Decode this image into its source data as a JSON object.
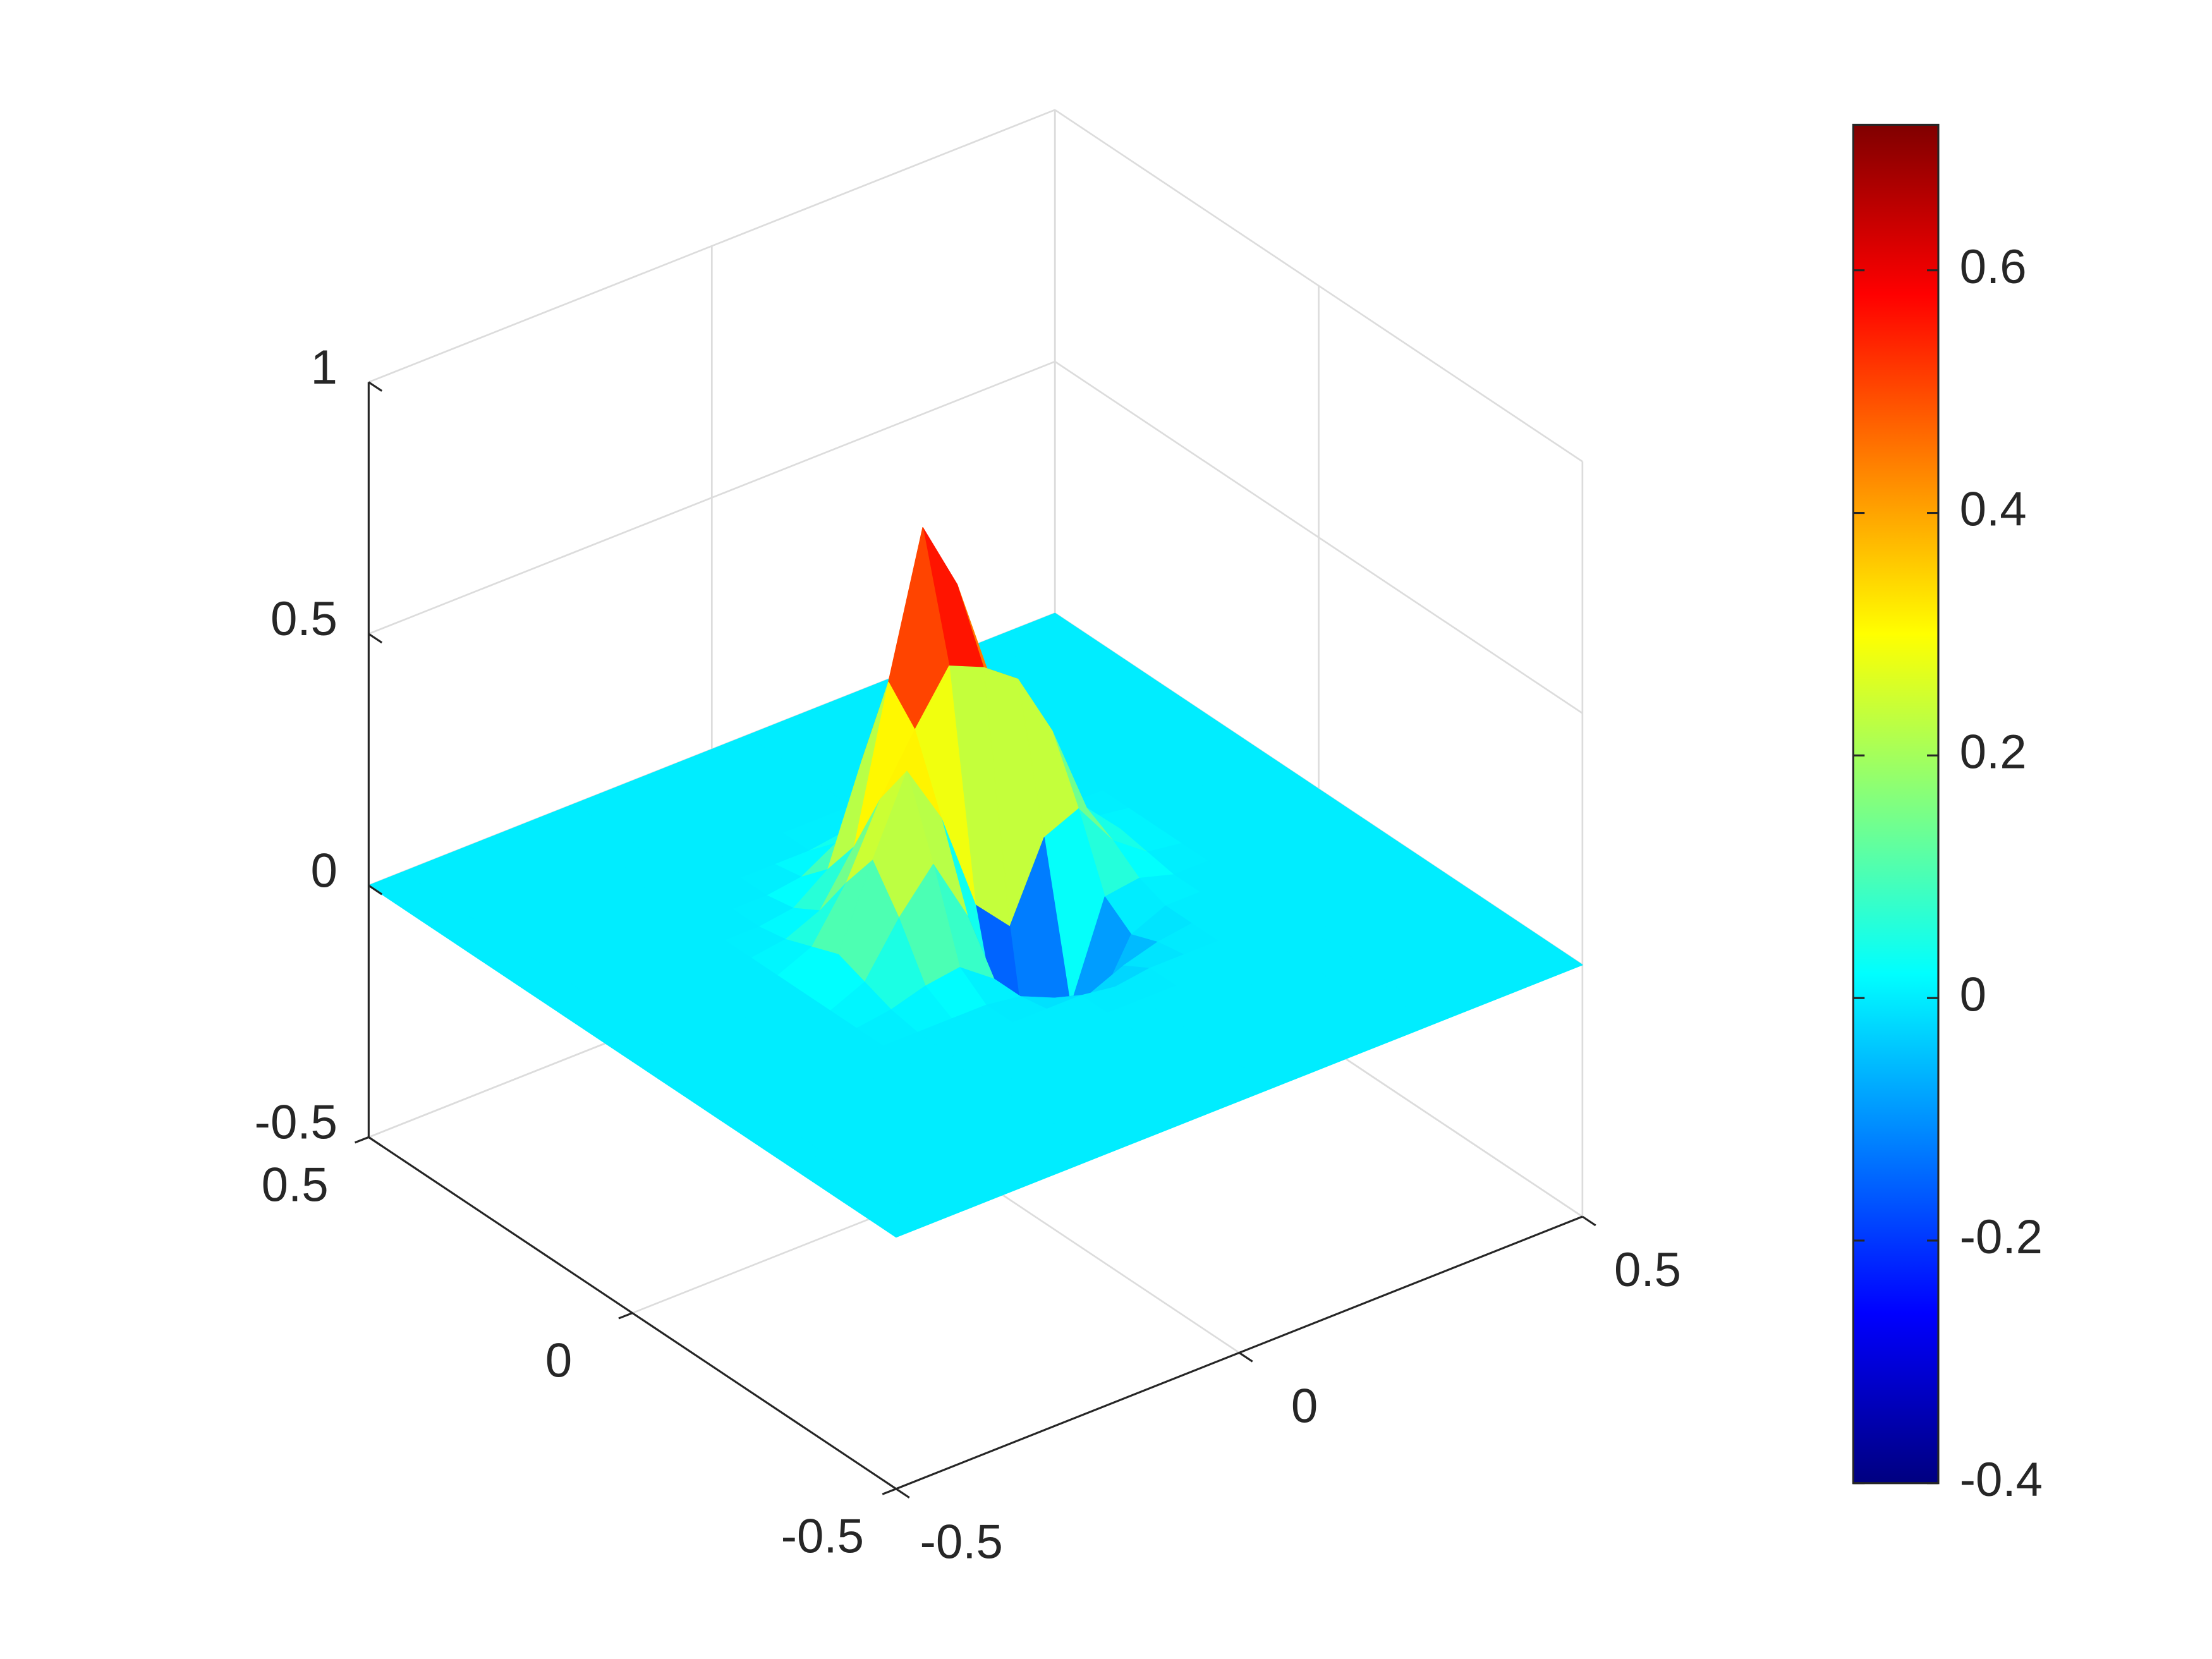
{
  "chart_data": {
    "type": "surface",
    "x": [
      -0.5,
      -0.45,
      -0.4,
      -0.35,
      -0.3,
      -0.25,
      -0.2,
      -0.15,
      -0.1,
      -0.05,
      0,
      0.05,
      0.1,
      0.15,
      0.2,
      0.25,
      0.3,
      0.35,
      0.4,
      0.45,
      0.5
    ],
    "y": [
      -0.5,
      -0.45,
      -0.4,
      -0.35,
      -0.3,
      -0.25,
      -0.2,
      -0.15,
      -0.1,
      -0.05,
      0,
      0.05,
      0.1,
      0.15,
      0.2,
      0.25,
      0.3,
      0.35,
      0.4,
      0.45,
      0.5
    ],
    "z": [
      [
        0,
        0,
        0,
        0,
        0,
        0,
        0,
        0,
        0,
        0,
        0,
        0,
        0,
        0,
        0,
        0,
        0,
        0,
        0,
        0,
        0
      ],
      [
        0,
        0,
        0,
        0,
        0,
        0,
        0,
        0,
        0,
        0,
        0,
        0,
        0,
        0,
        0,
        0,
        0,
        0,
        0,
        0,
        0
      ],
      [
        0,
        0,
        0,
        0,
        0,
        0,
        0,
        0,
        0,
        0,
        0,
        0,
        0,
        0,
        0,
        0,
        0,
        0,
        0,
        0,
        0
      ],
      [
        0,
        0,
        0,
        0,
        0,
        0,
        0,
        0,
        0,
        0,
        0,
        0,
        0,
        0,
        0,
        0,
        0,
        0,
        0,
        0,
        0
      ],
      [
        0,
        0,
        0,
        0,
        0,
        0,
        0,
        0,
        0,
        0,
        0,
        0,
        0,
        0,
        0,
        0,
        0,
        0,
        0,
        0,
        0
      ],
      [
        0,
        0,
        0,
        0,
        0,
        0,
        0,
        0,
        0,
        0,
        0,
        0,
        0,
        0,
        0,
        0,
        0,
        0,
        0,
        0,
        0
      ],
      [
        0,
        0,
        0,
        0,
        0,
        0,
        0,
        0,
        0,
        0,
        0,
        -0.01,
        0,
        0,
        0,
        0,
        0,
        0,
        0,
        0,
        0
      ],
      [
        0,
        0,
        0,
        0,
        0,
        0,
        0,
        0,
        0,
        -0.01,
        -0.04,
        -0.06,
        -0.03,
        -0.01,
        0,
        0,
        0,
        0,
        0,
        0,
        0
      ],
      [
        0,
        0,
        0,
        0,
        0,
        0,
        0.01,
        0.03,
        0.04,
        -0.01,
        -0.16,
        -0.26,
        -0.15,
        -0.03,
        0,
        0,
        0,
        0,
        0,
        0,
        0
      ],
      [
        0,
        0,
        0,
        0,
        0,
        0,
        0.03,
        0.13,
        0.21,
        0.08,
        -0.21,
        -0.4,
        -0.18,
        0.01,
        0.02,
        0,
        0,
        0,
        0,
        0,
        0
      ],
      [
        0,
        0,
        0,
        0,
        0,
        0,
        0.05,
        0.21,
        0.36,
        0.24,
        0.04,
        -0.03,
        0.12,
        0.15,
        0.06,
        0.01,
        0,
        0,
        0,
        0,
        0
      ],
      [
        0,
        0,
        0,
        0,
        0,
        0,
        0.03,
        0.13,
        0.27,
        0.38,
        0.48,
        0.45,
        0.4,
        0.27,
        0.09,
        0.02,
        0,
        0,
        0,
        0,
        0
      ],
      [
        0,
        0,
        0,
        0,
        0,
        0,
        0.01,
        0.04,
        0.14,
        0.44,
        0.72,
        0.58,
        0.36,
        0.2,
        0.07,
        0.01,
        0,
        0,
        0,
        0,
        0
      ],
      [
        0,
        0,
        0,
        0,
        0,
        0,
        0,
        0.01,
        0.06,
        0.25,
        0.42,
        0.31,
        0.15,
        0.07,
        0.02,
        0,
        0,
        0,
        0,
        0,
        0
      ],
      [
        0,
        0,
        0,
        0,
        0,
        0,
        0,
        0,
        0.01,
        0.05,
        0.09,
        0.07,
        0.03,
        0.01,
        0,
        0,
        0,
        0,
        0,
        0,
        0
      ],
      [
        0,
        0,
        0,
        0,
        0,
        0,
        0,
        0,
        0,
        0,
        0.01,
        0,
        0,
        0,
        0,
        0,
        0,
        0,
        0,
        0,
        0
      ],
      [
        0,
        0,
        0,
        0,
        0,
        0,
        0,
        0,
        0,
        0,
        0,
        0,
        0,
        0,
        0,
        0,
        0,
        0,
        0,
        0,
        0
      ],
      [
        0,
        0,
        0,
        0,
        0,
        0,
        0,
        0,
        0,
        0,
        0,
        0,
        0,
        0,
        0,
        0,
        0,
        0,
        0,
        0,
        0
      ],
      [
        0,
        0,
        0,
        0,
        0,
        0,
        0,
        0,
        0,
        0,
        0,
        0,
        0,
        0,
        0,
        0,
        0,
        0,
        0,
        0,
        0
      ],
      [
        0,
        0,
        0,
        0,
        0,
        0,
        0,
        0,
        0,
        0,
        0,
        0,
        0,
        0,
        0,
        0,
        0,
        0,
        0,
        0,
        0
      ],
      [
        0,
        0,
        0,
        0,
        0,
        0,
        0,
        0,
        0,
        0,
        0,
        0,
        0,
        0,
        0,
        0,
        0,
        0,
        0,
        0,
        0
      ]
    ],
    "xlim": [
      -0.5,
      0.5
    ],
    "ylim": [
      -0.5,
      0.5
    ],
    "zlim": [
      -0.5,
      1
    ],
    "xticks": [
      -0.5,
      0,
      0.5
    ],
    "yticks": [
      -0.5,
      0,
      0.5
    ],
    "zticks": [
      -0.5,
      0,
      0.5,
      1
    ],
    "grid": true,
    "colormap": "jet",
    "colorbar": true,
    "clim": [
      -0.4,
      0.72
    ],
    "cticks": [
      -0.4,
      -0.2,
      0,
      0.2,
      0.4,
      0.6
    ]
  }
}
